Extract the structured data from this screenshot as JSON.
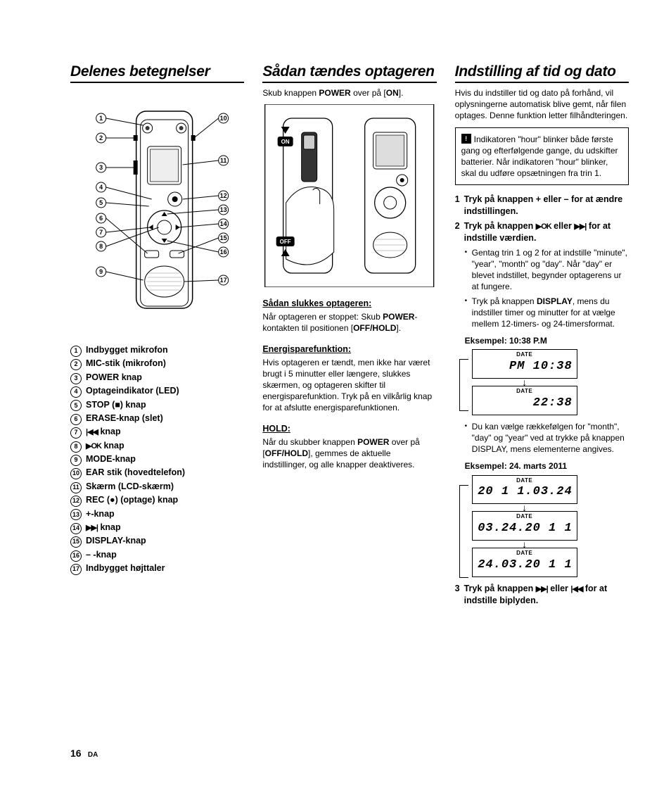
{
  "page": {
    "number": "16",
    "lang": "DA"
  },
  "col1": {
    "heading": "Delenes betegnelser",
    "diagram": {
      "callouts_left": [
        "1",
        "2",
        "3",
        "4",
        "5",
        "6",
        "7",
        "8",
        "9"
      ],
      "callouts_right": [
        "10",
        "11",
        "12",
        "13",
        "14",
        "15",
        "16",
        "17"
      ]
    },
    "parts": [
      {
        "n": "1",
        "pre": "",
        "bold": "",
        "text": "Indbygget mikrofon"
      },
      {
        "n": "2",
        "pre": "",
        "bold": "MIC",
        "text": "-stik (mikrofon)"
      },
      {
        "n": "3",
        "pre": "",
        "bold": "POWER",
        "text": " knap"
      },
      {
        "n": "4",
        "pre": "",
        "bold": "",
        "text": "Optageindikator (LED)"
      },
      {
        "n": "5",
        "pre": "",
        "bold": "STOP",
        "text": " (■) knap"
      },
      {
        "n": "6",
        "pre": "",
        "bold": "ERASE",
        "text": "-knap (slet)"
      },
      {
        "n": "7",
        "pre": "",
        "bold": "",
        "text": "",
        "icon": "|◀◀",
        "suffix": " knap"
      },
      {
        "n": "8",
        "pre": "",
        "bold": "",
        "text": "",
        "icon": "▶OK",
        "suffix": " knap"
      },
      {
        "n": "9",
        "pre": "",
        "bold": "MODE",
        "text": "-knap"
      },
      {
        "n": "10",
        "pre": "",
        "bold": "EAR",
        "text": " stik (hovedtelefon)"
      },
      {
        "n": "11",
        "pre": "",
        "bold": "",
        "text": "Skærm (LCD-skærm)"
      },
      {
        "n": "12",
        "pre": "",
        "bold": "REC",
        "text": " (●) (optage) knap"
      },
      {
        "n": "13",
        "pre": "",
        "bold": "+",
        "text": "-knap"
      },
      {
        "n": "14",
        "pre": "",
        "bold": "",
        "text": "",
        "icon": "▶▶|",
        "suffix": " knap"
      },
      {
        "n": "15",
        "pre": "",
        "bold": "DISPLAY",
        "text": "-knap"
      },
      {
        "n": "16",
        "pre": "",
        "bold": "–",
        "text": " -knap"
      },
      {
        "n": "17",
        "pre": "",
        "bold": "",
        "text": "Indbygget højttaler"
      }
    ]
  },
  "col2": {
    "heading": "Sådan tændes optageren",
    "intro_pre": "Skub knappen ",
    "intro_bold1": "POWER",
    "intro_mid": " over på [",
    "intro_bold2": "ON",
    "intro_end": "].",
    "labels": {
      "on": "ON",
      "off": "OFF"
    },
    "sub1": {
      "title": "Sådan slukkes optageren:",
      "t1": "Når optageren er stoppet: Skub ",
      "b1": "POWER",
      "t2": "-kontakten til positionen [",
      "b2": "OFF/HOLD",
      "t3": "]."
    },
    "sub2": {
      "title": "Energisparefunktion:",
      "text": "Hvis optageren er tændt, men ikke har været brugt i 5 minutter eller længere, slukkes skærmen, og optageren skifter til energisparefunktion. Tryk på en vilkårlig knap for at afslutte energisparefunktionen."
    },
    "sub3": {
      "title": "HOLD:",
      "t1": "Når du skubber knappen ",
      "b1": "POWER",
      "t2": " over på [",
      "b2": "OFF/HOLD",
      "t3": "], gemmes de aktuelle indstillinger, og alle knapper deaktiveres."
    }
  },
  "col3": {
    "heading": "Indstilling af tid og dato",
    "intro": "Hvis du indstiller tid og dato på forhånd, vil oplysningerne automatisk blive gemt, når filen optages. Denne funktion letter filhåndteringen.",
    "note": "Indikatoren \"hour\" blinker både første gang og efterfølgende gange, du udskifter batterier. Når indikatoren \"hour\" blinker, skal du udføre opsætningen fra trin 1.",
    "step1": {
      "n": "1",
      "text": "Tryk på knappen + eller – for at ændre indstillingen."
    },
    "step2": {
      "n": "2",
      "pre": "Tryk på knappen ",
      "icon1": "▶OK",
      "mid": " eller ",
      "icon2": "▶▶|",
      "post": " for at indstille værdien."
    },
    "bullets1": [
      "Gentag trin 1 og 2 for at indstille \"minute\", \"year\", \"month\" og \"day\". Når \"day\" er blevet indstillet, begynder optagerens ur at fungere.",
      "Tryk på knappen DISPLAY, mens du indstiller timer og minutter for at vælge mellem 12-timers- og 24-timersformat."
    ],
    "example1_label": "Eksempel: 10:38 P.M",
    "lcd1": [
      {
        "tag": "DATE",
        "val": "PM 10:38"
      },
      {
        "tag": "DATE",
        "val": "22:38"
      }
    ],
    "bullet2": "Du kan vælge rækkefølgen for \"month\", \"day\" og \"year\" ved at trykke på knappen DISPLAY, mens elementerne angives.",
    "example2_label": "Eksempel: 24. marts 2011",
    "lcd2": [
      {
        "tag": "DATE",
        "val": "20 1 1.03.24"
      },
      {
        "tag": "DATE",
        "val": "03.24.20 1 1"
      },
      {
        "tag": "DATE",
        "val": "24.03.20 1 1"
      }
    ],
    "step3": {
      "n": "3",
      "pre": "Tryk på knappen ",
      "icon1": "▶▶|",
      "mid": " eller ",
      "icon2": "|◀◀",
      "post": " for at indstille biplyden."
    }
  },
  "colors": {
    "text": "#000000",
    "bg": "#ffffff",
    "line": "#000000",
    "fill_dark": "#2a2a2a"
  }
}
